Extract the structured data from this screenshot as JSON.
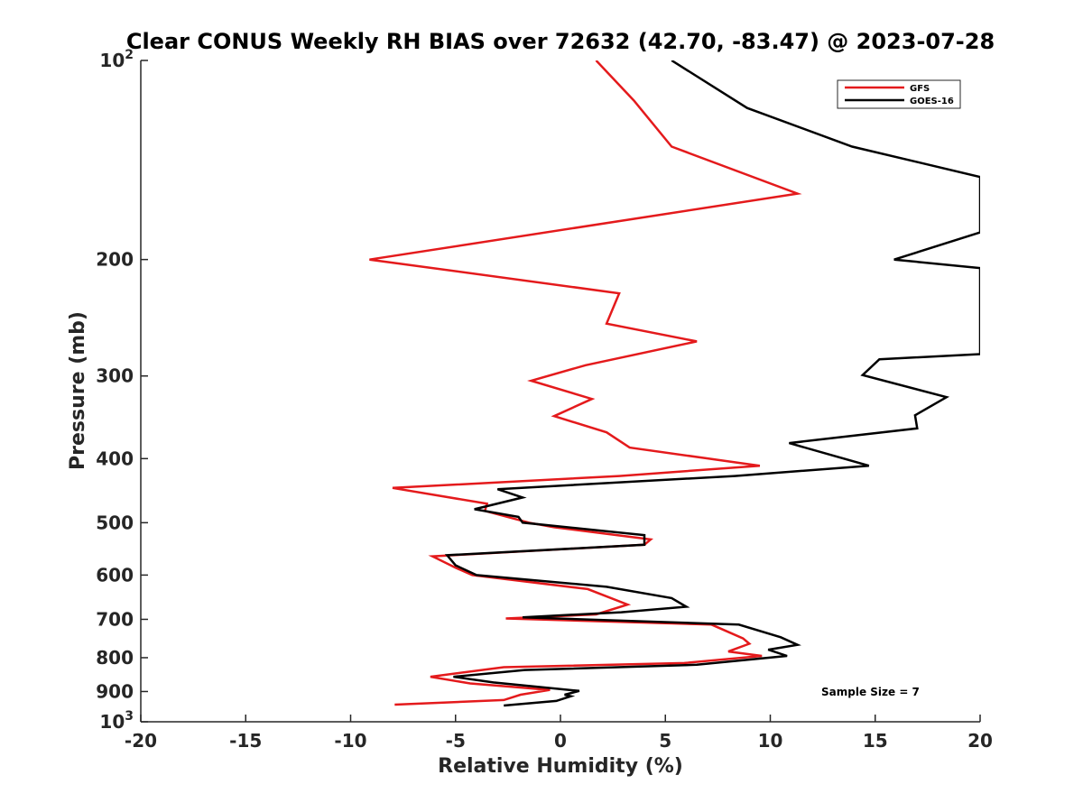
{
  "chart_data": {
    "type": "line",
    "title": "Clear CONUS Weekly RH BIAS over 72632 (42.70, -83.47) @ 2023-07-28",
    "xlabel": "Relative Humidity (%)",
    "ylabel": "Pressure (mb)",
    "xlim": [
      -20,
      20
    ],
    "ylim": [
      100,
      1000
    ],
    "y_scale": "log",
    "y_reversed": true,
    "grid": false,
    "legend_position": "top-right",
    "x_ticks": [
      "-20",
      "-15",
      "-10",
      "-5",
      "0",
      "5",
      "10",
      "15",
      "20"
    ],
    "x_tick_values": [
      -20,
      -15,
      -10,
      -5,
      0,
      5,
      10,
      15,
      20
    ],
    "y_ticks": [
      {
        "value": 100,
        "base": "10",
        "exp": "2"
      },
      {
        "value": 200,
        "text": "200"
      },
      {
        "value": 300,
        "text": "300"
      },
      {
        "value": 400,
        "text": "400"
      },
      {
        "value": 500,
        "text": "500"
      },
      {
        "value": 600,
        "text": "600"
      },
      {
        "value": 700,
        "text": "700"
      },
      {
        "value": 800,
        "text": "800"
      },
      {
        "value": 900,
        "text": "900"
      },
      {
        "value": 1000,
        "base": "10",
        "exp": "3"
      }
    ],
    "annotation": "Sample Size = 7",
    "series": [
      {
        "name": "GFS",
        "color": "#e41a1c",
        "points": [
          [
            1.7,
            100
          ],
          [
            3.5,
            115
          ],
          [
            5.3,
            135
          ],
          [
            11.3,
            159
          ],
          [
            -9.1,
            200
          ],
          [
            2.8,
            225
          ],
          [
            2.2,
            250
          ],
          [
            6.5,
            266
          ],
          [
            1.2,
            289
          ],
          [
            -1.4,
            305
          ],
          [
            1.5,
            325
          ],
          [
            -0.3,
            345
          ],
          [
            2.2,
            365
          ],
          [
            3.3,
            385
          ],
          [
            9.5,
            410
          ],
          [
            2.8,
            425
          ],
          [
            -8.0,
            443
          ],
          [
            -3.5,
            468
          ],
          [
            -3.6,
            480
          ],
          [
            -1.5,
            500
          ],
          [
            -0.3,
            508
          ],
          [
            4.3,
            530
          ],
          [
            4.0,
            540
          ],
          [
            -6.1,
            562
          ],
          [
            -5.0,
            585
          ],
          [
            -4.2,
            600
          ],
          [
            1.3,
            630
          ],
          [
            3.2,
            665
          ],
          [
            1.7,
            688
          ],
          [
            -2.6,
            698
          ],
          [
            7.2,
            713
          ],
          [
            8.7,
            748
          ],
          [
            9.0,
            762
          ],
          [
            8.0,
            783
          ],
          [
            9.6,
            795
          ],
          [
            5.9,
            815
          ],
          [
            -2.7,
            827
          ],
          [
            -6.2,
            855
          ],
          [
            -4.3,
            875
          ],
          [
            -0.5,
            895
          ],
          [
            -1.9,
            910
          ],
          [
            -2.7,
            927
          ],
          [
            -7.9,
            942
          ]
        ]
      },
      {
        "name": "GOES-16",
        "color": "#000000",
        "points": [
          [
            5.3,
            100
          ],
          [
            8.9,
            118
          ],
          [
            13.9,
            135
          ],
          [
            20.0,
            150
          ],
          [
            20.0,
            182
          ],
          [
            15.9,
            200
          ],
          [
            20.0,
            206
          ],
          [
            20.0,
            278
          ],
          [
            15.2,
            283
          ],
          [
            14.4,
            299
          ],
          [
            18.4,
            323
          ],
          [
            16.9,
            344
          ],
          [
            17.0,
            360
          ],
          [
            10.9,
            379
          ],
          [
            14.7,
            410
          ],
          [
            8.3,
            425
          ],
          [
            -3.0,
            445
          ],
          [
            -1.8,
            458
          ],
          [
            -4.1,
            477
          ],
          [
            -2.0,
            490
          ],
          [
            -1.8,
            500
          ],
          [
            4.0,
            522
          ],
          [
            4.0,
            540
          ],
          [
            -5.4,
            560
          ],
          [
            -5.0,
            580
          ],
          [
            -4.0,
            600
          ],
          [
            2.2,
            625
          ],
          [
            5.3,
            650
          ],
          [
            6.0,
            670
          ],
          [
            2.9,
            683
          ],
          [
            -1.8,
            695
          ],
          [
            8.5,
            713
          ],
          [
            10.5,
            745
          ],
          [
            11.3,
            765
          ],
          [
            9.9,
            778
          ],
          [
            10.8,
            795
          ],
          [
            6.5,
            820
          ],
          [
            -1.7,
            835
          ],
          [
            -5.1,
            855
          ],
          [
            -3.2,
            872
          ],
          [
            0.9,
            898
          ],
          [
            0.2,
            910
          ],
          [
            0.5,
            915
          ],
          [
            -0.2,
            930
          ],
          [
            -2.7,
            945
          ]
        ]
      }
    ]
  }
}
